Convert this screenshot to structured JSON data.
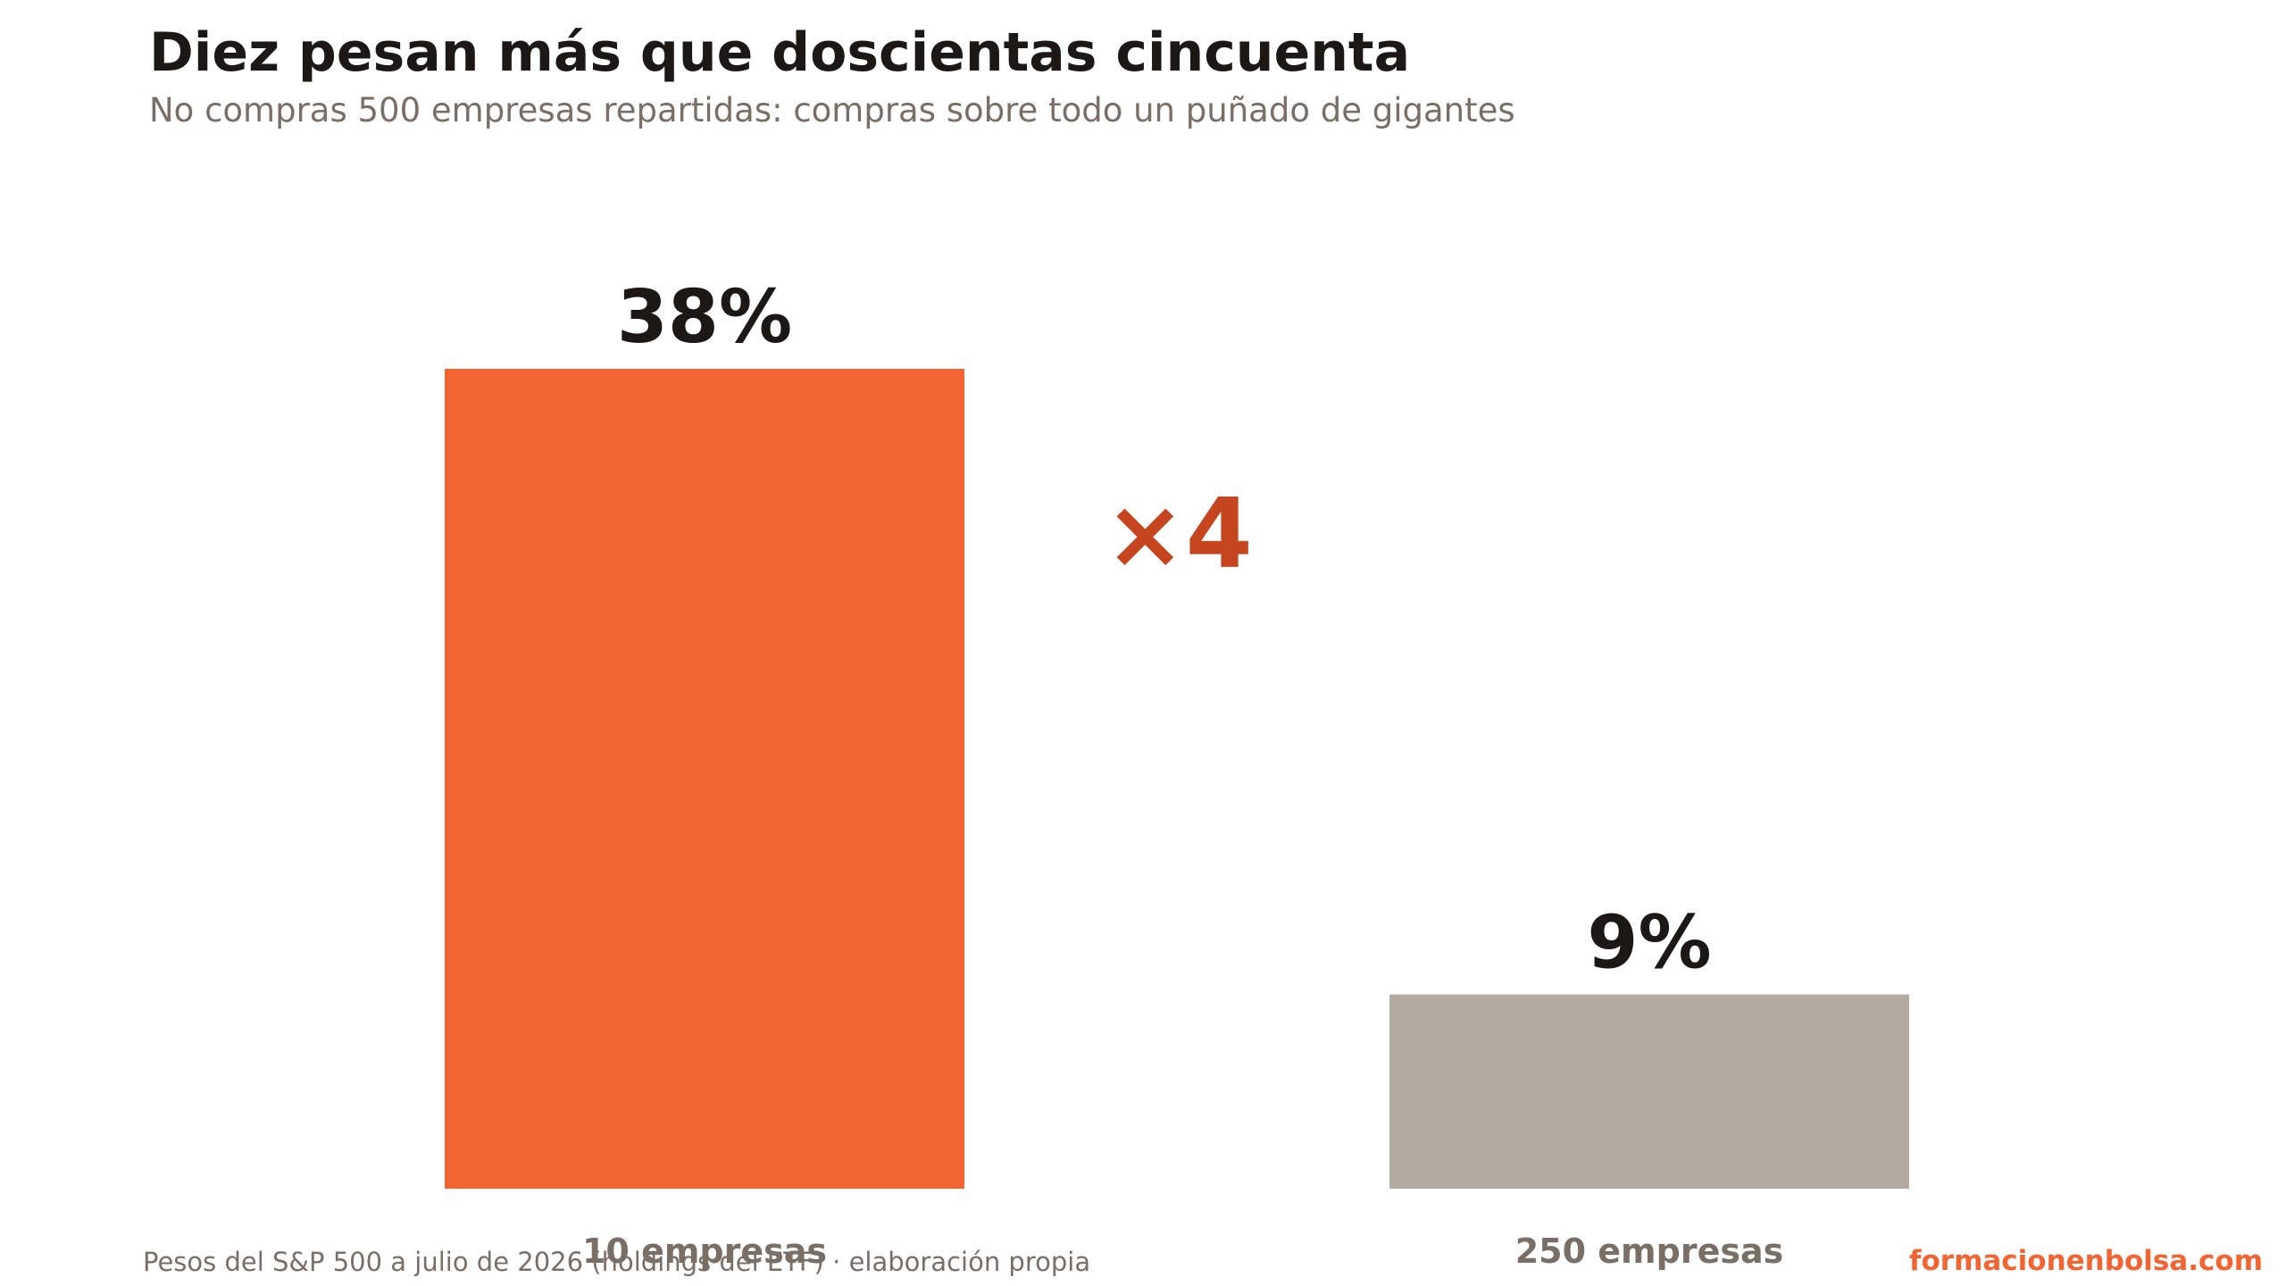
{
  "title": "Diez pesan más que doscientas cincuenta",
  "subtitle": "No compras 500 empresas repartidas: compras sobre todo un puñado de gigantes",
  "chart_data": {
    "type": "bar",
    "categories": [
      "10 empresas",
      "250 empresas"
    ],
    "values": [
      38,
      9
    ],
    "value_labels": [
      "38%",
      "9%"
    ],
    "unit": "%",
    "colors": [
      "#f26532",
      "#b3aba1"
    ],
    "ylim": [
      0,
      38
    ],
    "grid": false,
    "annotation": {
      "text": "×4",
      "color": "#c4451e"
    }
  },
  "footer": {
    "source": "Pesos del S&P 500 a julio de 2026 (holdings del ETF) · elaboración propia",
    "brand": "formacionenbolsa.com"
  }
}
